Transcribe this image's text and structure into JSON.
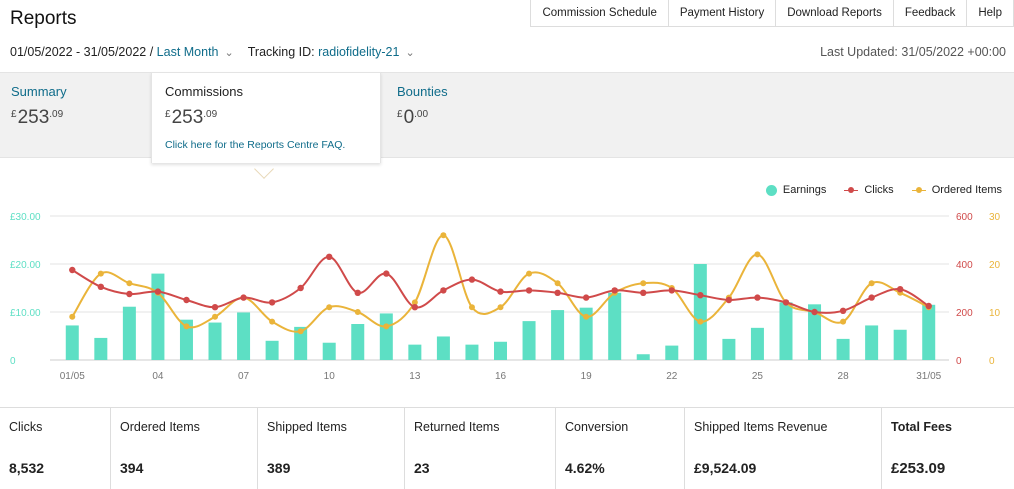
{
  "page": {
    "title": "Reports"
  },
  "topnav": [
    "Commission Schedule",
    "Payment History",
    "Download Reports",
    "Feedback",
    "Help"
  ],
  "filters": {
    "date_range": "01/05/2022 - 31/05/2022 /",
    "period": "Last Month",
    "tracking_label": "Tracking ID:",
    "tracking_id": "radiofidelity-21",
    "last_updated": "Last Updated: 31/05/2022 +00:00"
  },
  "tabs": {
    "summary": {
      "label": "Summary",
      "currency": "£",
      "whole": "253",
      "frac": ".09"
    },
    "commissions": {
      "label": "Commissions",
      "currency": "£",
      "whole": "253",
      "frac": ".09",
      "faq": "Click here for the Reports Centre FAQ."
    },
    "bounties": {
      "label": "Bounties",
      "currency": "£",
      "whole": "0",
      "frac": ".00"
    }
  },
  "legend": {
    "earnings": "Earnings",
    "clicks": "Clicks",
    "ordered": "Ordered Items"
  },
  "colors": {
    "earnings": "#5ddfc4",
    "clicks": "#d04a4a",
    "ordered": "#eab43a",
    "link": "#0f6c8a"
  },
  "chart_data": {
    "type": "bar+line",
    "x": [
      "01/05",
      "02/05",
      "03/05",
      "04/05",
      "05/05",
      "06/05",
      "07/05",
      "08/05",
      "09/05",
      "10/05",
      "11/05",
      "12/05",
      "13/05",
      "14/05",
      "15/05",
      "16/05",
      "17/05",
      "18/05",
      "19/05",
      "20/05",
      "21/05",
      "22/05",
      "23/05",
      "24/05",
      "25/05",
      "26/05",
      "27/05",
      "28/05",
      "29/05",
      "30/05",
      "31/05"
    ],
    "x_tick_labels": [
      "01/05",
      "04",
      "07",
      "10",
      "13",
      "16",
      "19",
      "22",
      "25",
      "28",
      "31/05"
    ],
    "left_axis": {
      "ticks": [
        "0",
        "£10.00",
        "£20.00",
        "£30.00"
      ],
      "range": [
        0,
        30
      ]
    },
    "right_axis_clicks": {
      "ticks": [
        "0",
        "200",
        "400",
        "600"
      ],
      "range": [
        0,
        600
      ]
    },
    "right_axis_ordered": {
      "ticks": [
        "0",
        "10",
        "20",
        "30"
      ],
      "range": [
        0,
        30
      ]
    },
    "series": [
      {
        "name": "Earnings",
        "kind": "bar",
        "axis": "left",
        "values": [
          7.2,
          4.6,
          11.1,
          18.0,
          8.4,
          7.8,
          9.9,
          4.0,
          6.9,
          3.6,
          7.5,
          9.7,
          3.2,
          4.9,
          3.2,
          3.8,
          8.1,
          10.4,
          10.9,
          14.0,
          1.2,
          3.0,
          20.0,
          4.4,
          6.7,
          12.0,
          11.6,
          4.4,
          7.2,
          6.3,
          11.5
        ]
      },
      {
        "name": "Clicks",
        "kind": "line",
        "axis": "right_clicks",
        "values": [
          375,
          305,
          275,
          285,
          250,
          220,
          260,
          240,
          300,
          430,
          280,
          360,
          220,
          290,
          335,
          285,
          290,
          280,
          260,
          290,
          280,
          290,
          270,
          250,
          260,
          240,
          200,
          205,
          260,
          295,
          225
        ]
      },
      {
        "name": "Ordered Items",
        "kind": "line",
        "axis": "right_ordered",
        "values": [
          9,
          18,
          16,
          14,
          7,
          9,
          13,
          8,
          6,
          11,
          10,
          7,
          12,
          26,
          11,
          11,
          18,
          16,
          9,
          14,
          16,
          15,
          8,
          13,
          22,
          12,
          10,
          8,
          16,
          14,
          11
        ]
      }
    ]
  },
  "stats": [
    {
      "label": "Clicks",
      "value": "8,532"
    },
    {
      "label": "Ordered Items",
      "value": "394"
    },
    {
      "label": "Shipped Items",
      "value": "389"
    },
    {
      "label": "Returned Items",
      "value": "23"
    },
    {
      "label": "Conversion",
      "value": "4.62%"
    },
    {
      "label": "Shipped Items Revenue",
      "value": "£9,524.09"
    },
    {
      "label": "Total Fees",
      "value": "£253.09"
    }
  ]
}
